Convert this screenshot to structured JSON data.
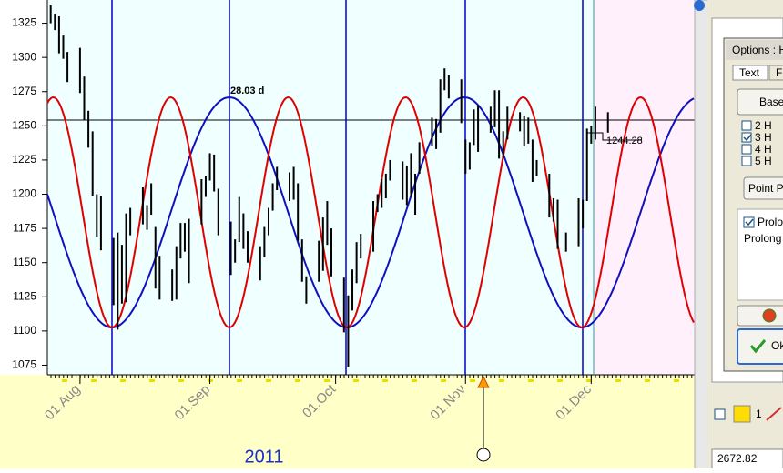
{
  "chart_data": {
    "type": "ohlc",
    "x": [
      -7,
      -6,
      -5,
      -4,
      -3,
      0,
      1,
      2,
      3,
      4,
      5,
      8,
      9,
      10,
      11,
      12,
      15,
      16,
      17,
      18,
      19,
      22,
      23,
      24,
      25,
      26,
      29,
      30,
      31,
      32,
      33,
      36,
      37,
      38,
      39,
      40,
      43,
      44,
      45,
      46,
      47,
      50,
      51,
      52,
      53,
      54,
      57,
      58,
      59,
      60,
      63,
      64,
      65,
      66,
      67,
      70,
      71,
      72,
      73,
      74,
      77,
      78,
      79,
      80,
      81,
      84,
      85,
      86,
      87,
      88,
      91,
      92,
      93,
      94,
      95,
      98,
      99,
      100,
      101,
      102,
      105,
      106,
      107,
      108,
      109,
      112,
      113,
      114,
      116,
      119,
      120,
      121,
      122,
      123,
      126
    ],
    "high": [
      1338,
      1332,
      1330,
      1316,
      1304,
      1307,
      1286,
      1261,
      1246,
      1200,
      1199,
      1168,
      1172,
      1163,
      1186,
      1190,
      1205,
      1192,
      1208,
      1176,
      1155,
      1145,
      1162,
      1179,
      1179,
      1182,
      1211,
      1213,
      1230,
      1229,
      1204,
      1180,
      1167,
      1198,
      1186,
      1173,
      1162,
      1176,
      1190,
      1208,
      1220,
      1216,
      1220,
      1208,
      1167,
      1140,
      1166,
      1183,
      1195,
      1175,
      1139,
      1126,
      1145,
      1165,
      1171,
      1195,
      1200,
      1211,
      1215,
      1225,
      1224,
      1221,
      1230,
      1215,
      1238,
      1256,
      1255,
      1284,
      1292,
      1287,
      1284,
      1240,
      1238,
      1262,
      1265,
      1264,
      1276,
      1276,
      1246,
      1264,
      1260,
      1257,
      1256,
      1240,
      1225,
      1215,
      1197,
      1196,
      1172,
      1197,
      1196,
      1248,
      1250,
      1264,
      1260
    ],
    "low": [
      1325,
      1320,
      1303,
      1299,
      1282,
      1274,
      1254,
      1234,
      1199,
      1169,
      1159,
      1119,
      1101,
      1120,
      1121,
      1170,
      1178,
      1174,
      1185,
      1131,
      1123,
      1122,
      1123,
      1153,
      1158,
      1135,
      1178,
      1198,
      1210,
      1202,
      1170,
      1141,
      1150,
      1165,
      1160,
      1150,
      1137,
      1154,
      1170,
      1188,
      1203,
      1195,
      1196,
      1166,
      1136,
      1120,
      1136,
      1144,
      1163,
      1140,
      1099,
      1074,
      1115,
      1135,
      1153,
      1158,
      1187,
      1190,
      1197,
      1210,
      1196,
      1192,
      1198,
      1185,
      1215,
      1235,
      1233,
      1245,
      1276,
      1270,
      1252,
      1215,
      1218,
      1236,
      1231,
      1245,
      1249,
      1226,
      1227,
      1240,
      1246,
      1235,
      1237,
      1209,
      1213,
      1183,
      1180,
      1160,
      1158,
      1162,
      1175,
      1195,
      1237,
      1240,
      1245
    ],
    "color": "#000000",
    "xlim": [
      -7.8,
      146.7
    ],
    "xticks": [
      {
        "value": 0,
        "label": "01.Aug"
      },
      {
        "value": 31,
        "label": "01.Sep"
      },
      {
        "value": 61,
        "label": "01.Oct"
      },
      {
        "value": 92,
        "label": "01.Nov"
      },
      {
        "value": 122,
        "label": "01.Dec"
      }
    ],
    "ylim": [
      1068,
      1342
    ],
    "yticks": [
      1075,
      1100,
      1125,
      1150,
      1175,
      1200,
      1225,
      1250,
      1275,
      1300,
      1325
    ],
    "year_label": "2011",
    "cycle_label": "28.03 d",
    "price_label": 1244.28
  },
  "panel": {
    "title": "Options : H",
    "tabs": [
      "Text",
      "F"
    ],
    "base_button": "Base",
    "checks": [
      {
        "label": "2 H",
        "checked": false
      },
      {
        "label": "3 H",
        "checked": true
      },
      {
        "label": "4 H",
        "checked": false
      },
      {
        "label": "5 H",
        "checked": false
      }
    ],
    "point_button": "Point Pe",
    "prolong_check": {
      "label": "Prolon",
      "checked": true
    },
    "prolong_text": "Prolong c",
    "ok": "Ok"
  },
  "status": {
    "count": "1",
    "value": 2672.82
  }
}
